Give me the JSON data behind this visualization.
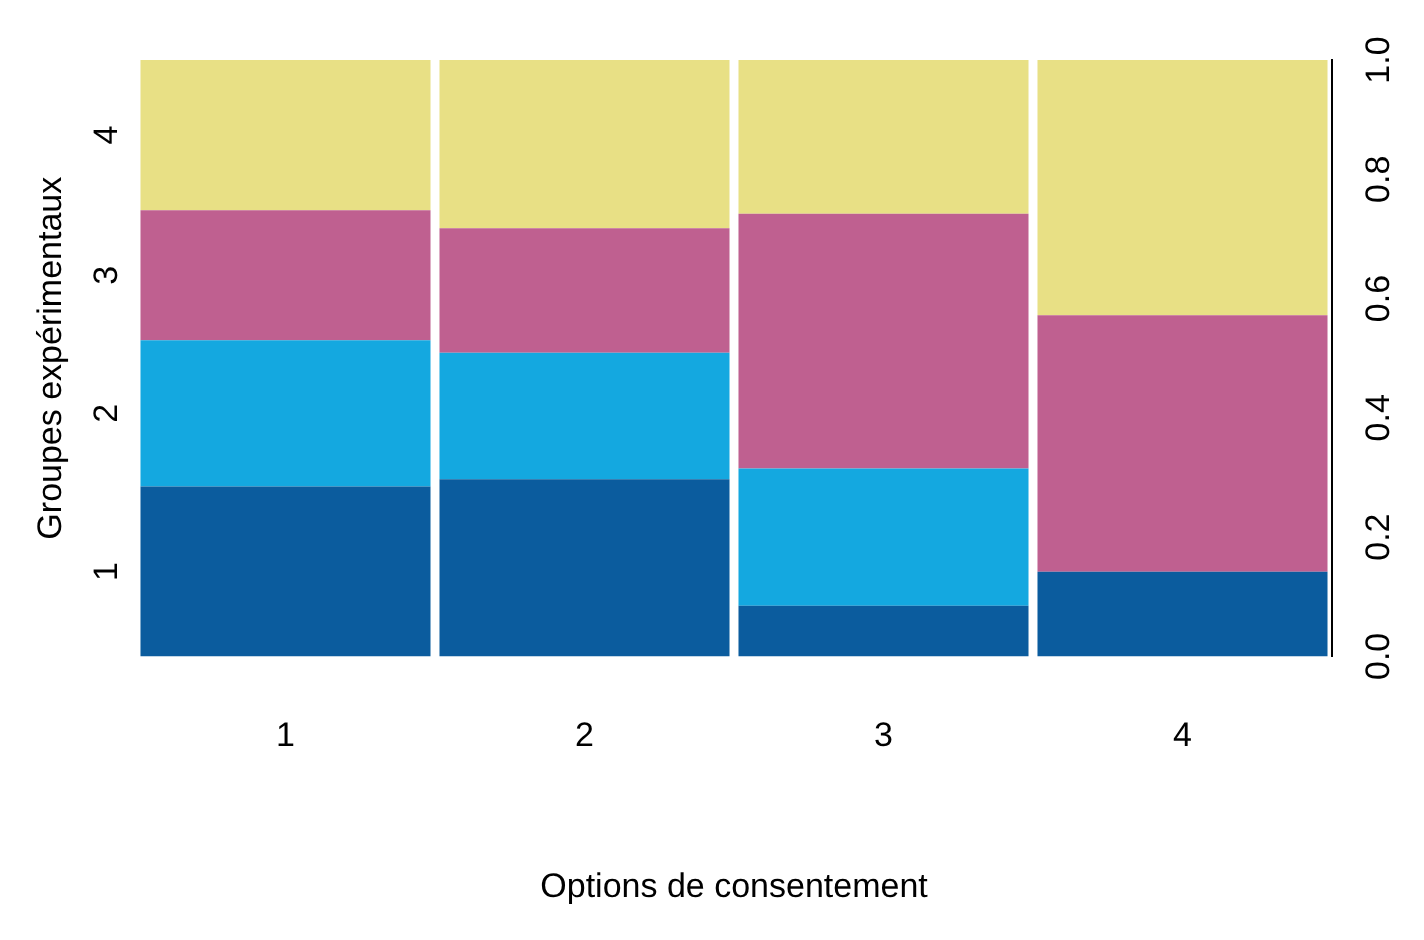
{
  "chart_data": {
    "type": "bar",
    "stacked": true,
    "xlabel": "Options de consentement",
    "ylabel": "Groupes expérimentaux",
    "categories": [
      "1",
      "2",
      "3",
      "4"
    ],
    "series": [
      {
        "name": "1",
        "color": "#0b5c9e",
        "values": [
          0.285,
          0.297,
          0.085,
          0.142
        ]
      },
      {
        "name": "2",
        "color": "#14a8e0",
        "values": [
          0.245,
          0.212,
          0.23,
          0
        ]
      },
      {
        "name": "3",
        "color": "#bf6090",
        "values": [
          0.218,
          0.209,
          0.427,
          0.43
        ]
      },
      {
        "name": "4",
        "color": "#e8e085",
        "values": [
          0.252,
          0.282,
          0.258,
          0.428
        ]
      }
    ],
    "ylim": [
      0,
      1
    ],
    "yticks": [
      {
        "value": 0,
        "label": "0.0"
      },
      {
        "value": 0.2,
        "label": "0.2"
      },
      {
        "value": 0.4,
        "label": "0.4"
      },
      {
        "value": 0.6,
        "label": "0.6"
      },
      {
        "value": 0.8,
        "label": "0.8"
      },
      {
        "value": 1,
        "label": "1.0"
      }
    ],
    "grid": false,
    "legend": false
  }
}
